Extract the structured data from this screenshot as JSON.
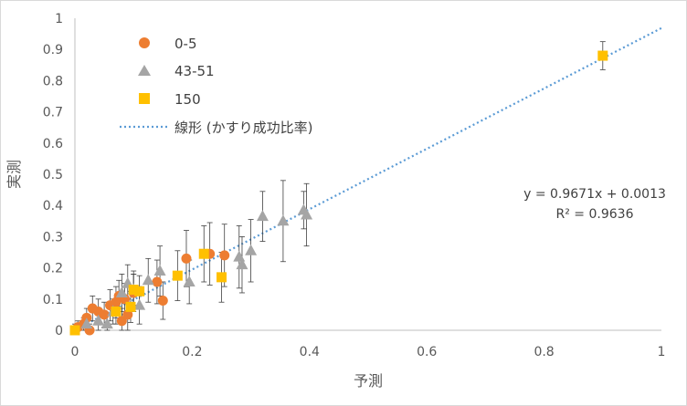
{
  "chart_data": {
    "type": "scatter",
    "xlabel": "予測",
    "ylabel": "実測",
    "xlim": [
      0,
      1
    ],
    "ylim": [
      0,
      1
    ],
    "x_ticks": [
      "0",
      "0.2",
      "0.4",
      "0.6",
      "0.8",
      "1"
    ],
    "y_ticks": [
      "0",
      "0.1",
      "0.2",
      "0.3",
      "0.4",
      "0.5",
      "0.6",
      "0.7",
      "0.8",
      "0.9",
      "1"
    ],
    "grid": false,
    "legend_position": "top-left",
    "series": [
      {
        "name": "0-5",
        "marker": "circle",
        "color": "#ed7d31",
        "points": [
          {
            "x": 0.005,
            "y": 0.01,
            "err": 0.02
          },
          {
            "x": 0.015,
            "y": 0.02,
            "err": 0.02
          },
          {
            "x": 0.02,
            "y": 0.04,
            "err": 0.03
          },
          {
            "x": 0.025,
            "y": 0.0,
            "err": 0.02
          },
          {
            "x": 0.03,
            "y": 0.07,
            "err": 0.04
          },
          {
            "x": 0.04,
            "y": 0.06,
            "err": 0.04
          },
          {
            "x": 0.05,
            "y": 0.05,
            "err": 0.04
          },
          {
            "x": 0.06,
            "y": 0.08,
            "err": 0.05
          },
          {
            "x": 0.07,
            "y": 0.09,
            "err": 0.05
          },
          {
            "x": 0.075,
            "y": 0.11,
            "err": 0.05
          },
          {
            "x": 0.08,
            "y": 0.03,
            "err": 0.04
          },
          {
            "x": 0.085,
            "y": 0.1,
            "err": 0.05
          },
          {
            "x": 0.09,
            "y": 0.05,
            "err": 0.05
          },
          {
            "x": 0.1,
            "y": 0.12,
            "err": 0.06
          },
          {
            "x": 0.14,
            "y": 0.155,
            "err": 0.07
          },
          {
            "x": 0.15,
            "y": 0.095,
            "err": 0.06
          },
          {
            "x": 0.19,
            "y": 0.23,
            "err": 0.09
          },
          {
            "x": 0.23,
            "y": 0.245,
            "err": 0.1
          },
          {
            "x": 0.255,
            "y": 0.24,
            "err": 0.1
          }
        ]
      },
      {
        "name": "43-51",
        "marker": "triangle",
        "color": "#a5a5a5",
        "points": [
          {
            "x": 0.02,
            "y": 0.02,
            "err": 0.02
          },
          {
            "x": 0.04,
            "y": 0.03,
            "err": 0.03
          },
          {
            "x": 0.055,
            "y": 0.02,
            "err": 0.03
          },
          {
            "x": 0.065,
            "y": 0.06,
            "err": 0.04
          },
          {
            "x": 0.08,
            "y": 0.12,
            "err": 0.06
          },
          {
            "x": 0.09,
            "y": 0.15,
            "err": 0.06
          },
          {
            "x": 0.1,
            "y": 0.13,
            "err": 0.06
          },
          {
            "x": 0.11,
            "y": 0.08,
            "err": 0.06
          },
          {
            "x": 0.125,
            "y": 0.16,
            "err": 0.07
          },
          {
            "x": 0.145,
            "y": 0.19,
            "err": 0.08
          },
          {
            "x": 0.195,
            "y": 0.155,
            "err": 0.07
          },
          {
            "x": 0.28,
            "y": 0.235,
            "err": 0.1
          },
          {
            "x": 0.285,
            "y": 0.21,
            "err": 0.09
          },
          {
            "x": 0.3,
            "y": 0.255,
            "err": 0.1
          },
          {
            "x": 0.32,
            "y": 0.365,
            "err": 0.08
          },
          {
            "x": 0.355,
            "y": 0.35,
            "err": 0.13
          },
          {
            "x": 0.39,
            "y": 0.385,
            "err": 0.06
          },
          {
            "x": 0.395,
            "y": 0.37,
            "err": 0.1
          }
        ]
      },
      {
        "name": "150",
        "marker": "square",
        "color": "#ffc000",
        "points": [
          {
            "x": 0.0,
            "y": 0.0,
            "err": 0.02
          },
          {
            "x": 0.07,
            "y": 0.06,
            "err": 0.04
          },
          {
            "x": 0.095,
            "y": 0.075,
            "err": 0.05
          },
          {
            "x": 0.1,
            "y": 0.13,
            "err": 0.05
          },
          {
            "x": 0.11,
            "y": 0.125,
            "err": 0.05
          },
          {
            "x": 0.175,
            "y": 0.175,
            "err": 0.08
          },
          {
            "x": 0.22,
            "y": 0.245,
            "err": 0.09
          },
          {
            "x": 0.25,
            "y": 0.17,
            "err": 0.08
          },
          {
            "x": 0.9,
            "y": 0.88,
            "err": 0.045
          }
        ]
      }
    ],
    "trendline": {
      "name": "線形 (かすり成功比率)",
      "color": "#5b9bd5",
      "slope": 0.9671,
      "intercept": 0.0013,
      "equation": "y = 0.9671x + 0.0013",
      "r2": "R² = 0.9636"
    }
  }
}
